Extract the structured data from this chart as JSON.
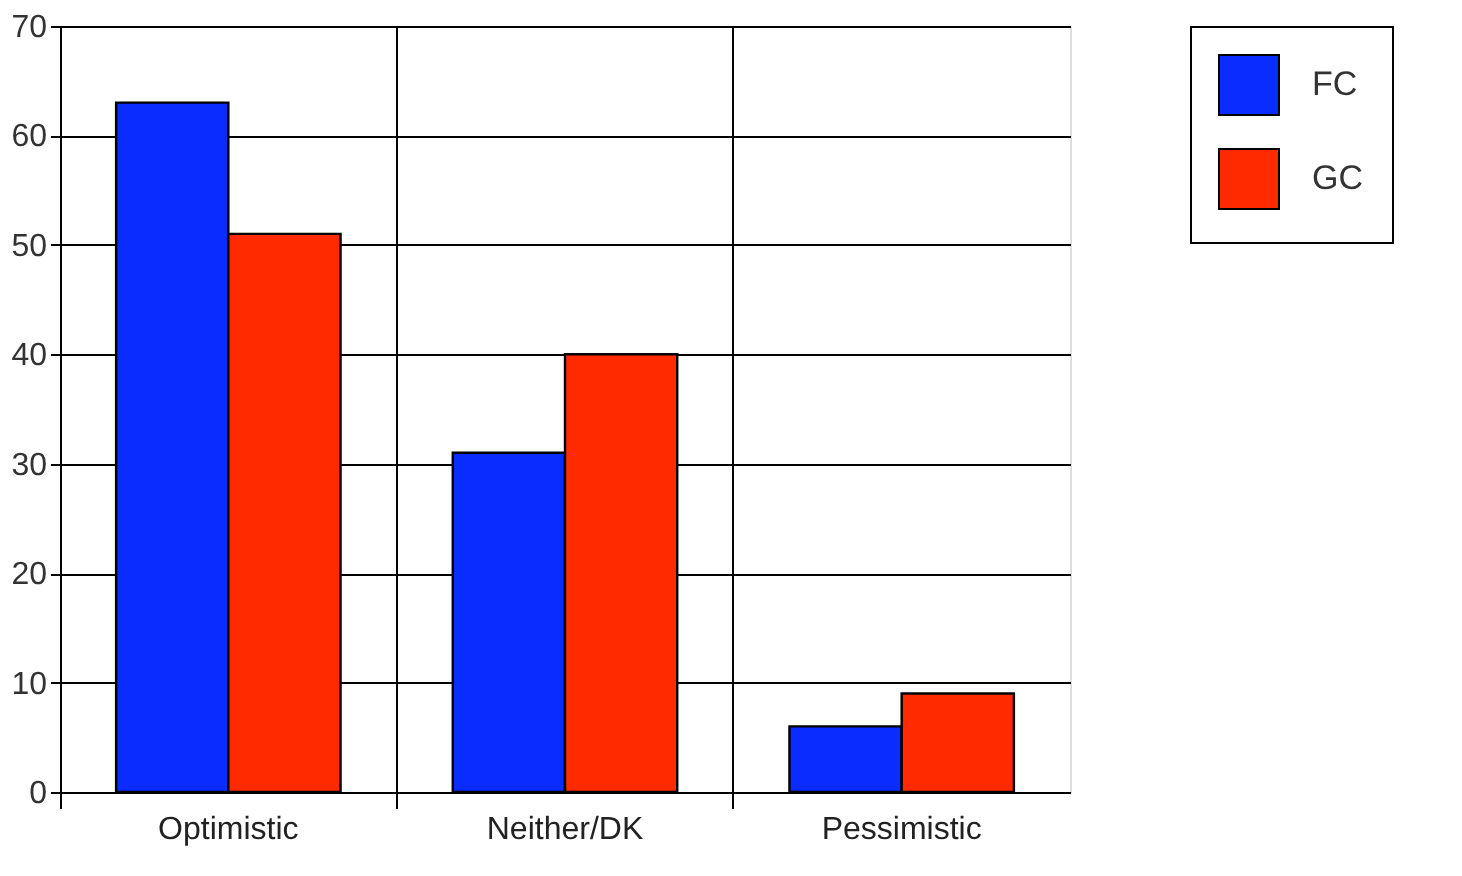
{
  "chart_data": {
    "type": "bar",
    "categories": [
      "Optimistic",
      "Neither/DK",
      "Pessimistic"
    ],
    "series": [
      {
        "name": "FC",
        "color": "#0a2cff",
        "values": [
          63,
          31,
          6
        ]
      },
      {
        "name": "GC",
        "color": "#ff2a00",
        "values": [
          51,
          40,
          9
        ]
      }
    ],
    "ylim": [
      0,
      70
    ],
    "yticks": [
      0,
      10,
      20,
      30,
      40,
      50,
      60,
      70
    ],
    "grid": true,
    "legend": "top right"
  }
}
